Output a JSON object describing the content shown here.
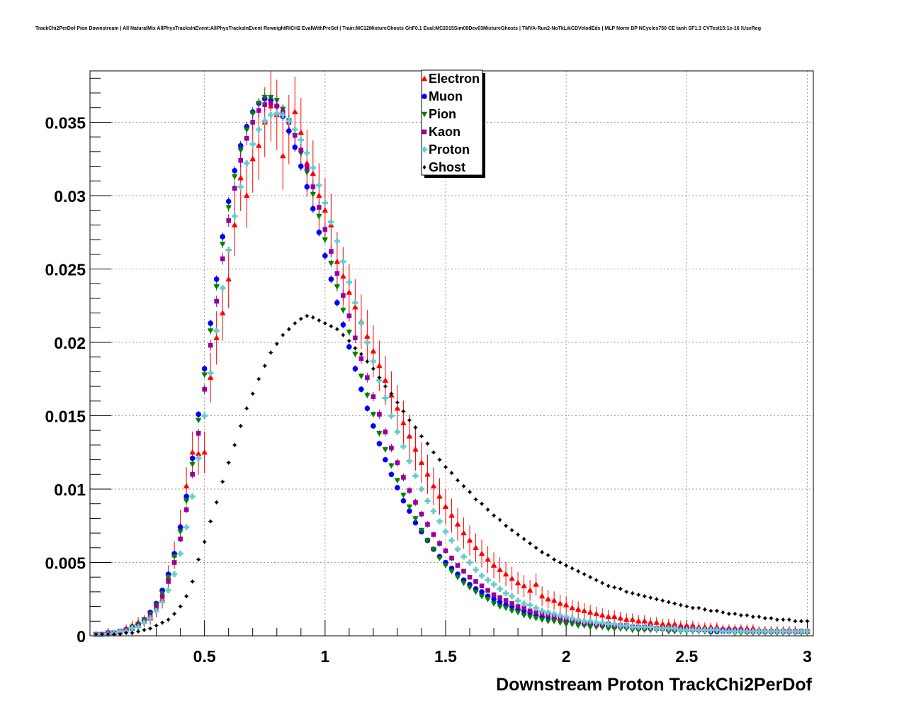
{
  "chart_data": {
    "type": "scatter",
    "title": "TrackChi2PerDof Pion Downstream | All NaturalMix AllPhysTracksInEvent:AllPhysTracksInEvent ReweightRICH2 EvalWithPreSel | Train:MC12MixtureGhosts GhF0.1 Eval:MC2015Sim09Dev03MixtureGhosts | TMVA-Run2-NoTkLikCDVelodEdx | MLP Norm BP NCycles750 CE tanh SF1.3 CVTest15:1e-16 !UseReg",
    "xlabel": "Downstream Proton TrackChi2PerDof",
    "ylabel": "",
    "xlim": [
      0.025,
      3.025
    ],
    "ylim": [
      0,
      0.0385
    ],
    "xticks": [
      0.5,
      1,
      1.5,
      2,
      2.5,
      3
    ],
    "xtick_labels": [
      "0.5",
      "1",
      "1.5",
      "2",
      "2.5",
      "3"
    ],
    "yticks": [
      0,
      0.005,
      0.01,
      0.015,
      0.02,
      0.025,
      0.03,
      0.035
    ],
    "ytick_labels": [
      "0",
      "0.005",
      "0.01",
      "0.015",
      "0.02",
      "0.025",
      "0.03",
      "0.035"
    ],
    "grid": true,
    "legend_position": "top-center",
    "x": [
      0.05,
      0.075,
      0.1,
      0.125,
      0.15,
      0.175,
      0.2,
      0.225,
      0.25,
      0.275,
      0.3,
      0.325,
      0.35,
      0.375,
      0.4,
      0.425,
      0.45,
      0.475,
      0.5,
      0.525,
      0.55,
      0.575,
      0.6,
      0.625,
      0.65,
      0.675,
      0.7,
      0.725,
      0.75,
      0.775,
      0.8,
      0.825,
      0.85,
      0.875,
      0.9,
      0.925,
      0.95,
      0.975,
      1.0,
      1.025,
      1.05,
      1.075,
      1.1,
      1.125,
      1.15,
      1.175,
      1.2,
      1.225,
      1.25,
      1.275,
      1.3,
      1.325,
      1.35,
      1.375,
      1.4,
      1.425,
      1.45,
      1.475,
      1.5,
      1.525,
      1.55,
      1.575,
      1.6,
      1.625,
      1.65,
      1.675,
      1.7,
      1.725,
      1.75,
      1.775,
      1.8,
      1.825,
      1.85,
      1.875,
      1.9,
      1.925,
      1.95,
      1.975,
      2.0,
      2.025,
      2.05,
      2.075,
      2.1,
      2.125,
      2.15,
      2.175,
      2.2,
      2.225,
      2.25,
      2.275,
      2.3,
      2.325,
      2.35,
      2.375,
      2.4,
      2.425,
      2.45,
      2.475,
      2.5,
      2.525,
      2.55,
      2.575,
      2.6,
      2.625,
      2.65,
      2.675,
      2.7,
      2.725,
      2.75,
      2.775,
      2.8,
      2.825,
      2.85,
      2.875,
      2.9,
      2.925,
      2.95,
      2.975,
      3.0
    ],
    "series": [
      {
        "name": "Electron",
        "color": "#ff0000",
        "marker": "triangle-up",
        "values": [
          0.0001,
          0.0001,
          0.0002,
          0.0002,
          0.0003,
          0.0005,
          0.0007,
          0.0009,
          0.001,
          0.0012,
          0.0018,
          0.0025,
          0.004,
          0.0055,
          0.0075,
          0.0102,
          0.0125,
          0.0124,
          0.0125,
          0.0176,
          0.0203,
          0.022,
          0.0243,
          0.028,
          0.0312,
          0.03,
          0.0325,
          0.0334,
          0.035,
          0.0361,
          0.0355,
          0.0327,
          0.0345,
          0.0357,
          0.0343,
          0.0322,
          0.0315,
          0.03,
          0.029,
          0.028,
          0.0255,
          0.0245,
          0.0234,
          0.0224,
          0.0214,
          0.0204,
          0.0194,
          0.0184,
          0.0174,
          0.0164,
          0.0155,
          0.0145,
          0.0136,
          0.0127,
          0.0118,
          0.011,
          0.0102,
          0.0095,
          0.0088,
          0.0082,
          0.0076,
          0.007,
          0.0065,
          0.006,
          0.0056,
          0.0052,
          0.0048,
          0.0045,
          0.0042,
          0.0039,
          0.0036,
          0.0034,
          0.0031,
          0.0035,
          0.0027,
          0.0025,
          0.0024,
          0.0022,
          0.0021,
          0.0019,
          0.0018,
          0.0017,
          0.0016,
          0.0015,
          0.0014,
          0.0013,
          0.0013,
          0.0012,
          0.0011,
          0.0011,
          0.001,
          0.001,
          0.0009,
          0.0009,
          0.0008,
          0.0008,
          0.0008,
          0.0007,
          0.0007,
          0.0007,
          0.0006,
          0.0006,
          0.0006,
          0.0006,
          0.0005,
          0.0005,
          0.0005,
          0.0005,
          0.0005,
          0.0005,
          0.0004,
          0.0004,
          0.0004,
          0.0004,
          0.0004,
          0.0004,
          0.0004,
          0.0003,
          0.0003
        ]
      },
      {
        "name": "Muon",
        "color": "#0000ff",
        "marker": "circle",
        "values": [
          0.0001,
          0.0001,
          0.0002,
          0.0002,
          0.0003,
          0.0004,
          0.0006,
          0.0008,
          0.0011,
          0.0016,
          0.0022,
          0.0031,
          0.0042,
          0.0056,
          0.0074,
          0.0095,
          0.0121,
          0.0151,
          0.0182,
          0.0213,
          0.0243,
          0.0272,
          0.0296,
          0.0317,
          0.0334,
          0.0347,
          0.0357,
          0.0363,
          0.0366,
          0.0365,
          0.0361,
          0.0354,
          0.0344,
          0.0333,
          0.032,
          0.0306,
          0.0291,
          0.0275,
          0.0259,
          0.0243,
          0.0227,
          0.0212,
          0.0197,
          0.0182,
          0.0168,
          0.0155,
          0.0143,
          0.0131,
          0.012,
          0.011,
          0.0101,
          0.0092,
          0.0085,
          0.0077,
          0.0071,
          0.0065,
          0.0059,
          0.0054,
          0.005,
          0.0046,
          0.0042,
          0.0038,
          0.0035,
          0.0032,
          0.003,
          0.0027,
          0.0025,
          0.0023,
          0.0021,
          0.002,
          0.0018,
          0.0017,
          0.0016,
          0.0014,
          0.0013,
          0.0013,
          0.0012,
          0.0011,
          0.001,
          0.001,
          0.0009,
          0.0008,
          0.0008,
          0.0008,
          0.0007,
          0.0007,
          0.0006,
          0.0006,
          0.0006,
          0.0006,
          0.0005,
          0.0005,
          0.0005,
          0.0005,
          0.0005,
          0.0004,
          0.0004,
          0.0004,
          0.0004,
          0.0004,
          0.0004,
          0.0004,
          0.0003,
          0.0003,
          0.0003,
          0.0003,
          0.0003,
          0.0003,
          0.0003,
          0.0003,
          0.0003,
          0.0003,
          0.0003,
          0.0003,
          0.0003,
          0.0003,
          0.0003,
          0.0003,
          0.0003
        ]
      },
      {
        "name": "Pion",
        "color": "#008000",
        "marker": "triangle-down",
        "values": [
          0.0001,
          0.0001,
          0.0002,
          0.0002,
          0.0003,
          0.0004,
          0.0006,
          0.0008,
          0.0011,
          0.0015,
          0.0021,
          0.0029,
          0.004,
          0.0054,
          0.0071,
          0.0092,
          0.0117,
          0.0147,
          0.0178,
          0.0208,
          0.0238,
          0.0267,
          0.0292,
          0.0313,
          0.0331,
          0.0345,
          0.0356,
          0.0363,
          0.0367,
          0.0367,
          0.0365,
          0.0359,
          0.0351,
          0.0341,
          0.0329,
          0.0316,
          0.0301,
          0.0286,
          0.027,
          0.0254,
          0.0238,
          0.0222,
          0.0207,
          0.0192,
          0.0177,
          0.0164,
          0.0151,
          0.0138,
          0.0127,
          0.0116,
          0.0106,
          0.0096,
          0.0088,
          0.008,
          0.0072,
          0.0065,
          0.0059,
          0.0053,
          0.0048,
          0.0044,
          0.004,
          0.0036,
          0.0033,
          0.003,
          0.0027,
          0.0025,
          0.0022,
          0.002,
          0.0019,
          0.0017,
          0.0016,
          0.0014,
          0.0013,
          0.0012,
          0.0011,
          0.001,
          0.001,
          0.0009,
          0.0008,
          0.0008,
          0.0007,
          0.0007,
          0.0006,
          0.0006,
          0.0006,
          0.0005,
          0.0005,
          0.0005,
          0.0005,
          0.0004,
          0.0004,
          0.0004,
          0.0004,
          0.0004,
          0.0004,
          0.0003,
          0.0003,
          0.0003,
          0.0003,
          0.0003,
          0.0003,
          0.0003,
          0.0003,
          0.0003,
          0.0003,
          0.0003,
          0.0002,
          0.0002,
          0.0002,
          0.0002,
          0.0002,
          0.0002,
          0.0002,
          0.0002,
          0.0002,
          0.0002,
          0.0002,
          0.0002,
          0.0002
        ]
      },
      {
        "name": "Kaon",
        "color": "#990099",
        "marker": "square",
        "values": [
          0.0001,
          0.0001,
          0.0002,
          0.0002,
          0.0003,
          0.0004,
          0.0005,
          0.0007,
          0.001,
          0.0014,
          0.002,
          0.0027,
          0.0037,
          0.005,
          0.0066,
          0.0086,
          0.011,
          0.0138,
          0.0168,
          0.0198,
          0.0228,
          0.0257,
          0.0283,
          0.0305,
          0.0324,
          0.0339,
          0.035,
          0.0358,
          0.0362,
          0.0363,
          0.0361,
          0.0357,
          0.035,
          0.0341,
          0.0331,
          0.0319,
          0.0306,
          0.0292,
          0.0277,
          0.0262,
          0.0247,
          0.0232,
          0.0218,
          0.0203,
          0.0189,
          0.0176,
          0.0163,
          0.0151,
          0.0139,
          0.0128,
          0.0118,
          0.0108,
          0.0099,
          0.0091,
          0.0083,
          0.0076,
          0.0069,
          0.0063,
          0.0058,
          0.0053,
          0.0048,
          0.0044,
          0.004,
          0.0037,
          0.0034,
          0.0031,
          0.0028,
          0.0026,
          0.0024,
          0.0022,
          0.002,
          0.0019,
          0.0017,
          0.0016,
          0.0015,
          0.0014,
          0.0013,
          0.0012,
          0.0011,
          0.0011,
          0.001,
          0.0009,
          0.0009,
          0.0008,
          0.0008,
          0.0008,
          0.0007,
          0.0007,
          0.0007,
          0.0006,
          0.0006,
          0.0006,
          0.0006,
          0.0005,
          0.0005,
          0.0005,
          0.0005,
          0.0005,
          0.0005,
          0.0004,
          0.0004,
          0.0004,
          0.0004,
          0.0004,
          0.0004,
          0.0004,
          0.0004,
          0.0004,
          0.0003,
          0.0003,
          0.0003,
          0.0003,
          0.0003,
          0.0003,
          0.0003,
          0.0003,
          0.0003,
          0.0003,
          0.0003
        ]
      },
      {
        "name": "Proton",
        "color": "#66cccc",
        "marker": "cross",
        "values": [
          0.0001,
          0.0001,
          0.0001,
          0.0002,
          0.0003,
          0.0003,
          0.0005,
          0.0006,
          0.0009,
          0.0012,
          0.0017,
          0.0023,
          0.0031,
          0.0042,
          0.0056,
          0.0074,
          0.0095,
          0.0121,
          0.015,
          0.0179,
          0.0208,
          0.0237,
          0.0263,
          0.0286,
          0.0306,
          0.0322,
          0.0335,
          0.0345,
          0.0351,
          0.0355,
          0.0356,
          0.0355,
          0.0351,
          0.0345,
          0.0338,
          0.0329,
          0.0319,
          0.0307,
          0.0295,
          0.0282,
          0.0269,
          0.0255,
          0.0241,
          0.0227,
          0.0213,
          0.02,
          0.0187,
          0.0174,
          0.0162,
          0.015,
          0.0139,
          0.0129,
          0.0119,
          0.0109,
          0.01,
          0.0092,
          0.0085,
          0.0078,
          0.0071,
          0.0065,
          0.0059,
          0.0054,
          0.005,
          0.0045,
          0.0041,
          0.0038,
          0.0035,
          0.0032,
          0.0029,
          0.0027,
          0.0024,
          0.0022,
          0.0021,
          0.0019,
          0.0017,
          0.0016,
          0.0015,
          0.0014,
          0.0013,
          0.0012,
          0.0011,
          0.001,
          0.001,
          0.0009,
          0.0009,
          0.0008,
          0.0008,
          0.0007,
          0.0007,
          0.0006,
          0.0006,
          0.0006,
          0.0006,
          0.0005,
          0.0005,
          0.0005,
          0.0005,
          0.0004,
          0.0004,
          0.0004,
          0.0004,
          0.0004,
          0.0004,
          0.0004,
          0.0003,
          0.0003,
          0.0003,
          0.0003,
          0.0003,
          0.0003,
          0.0003,
          0.0003,
          0.0003,
          0.0003,
          0.0003,
          0.0003,
          0.0003,
          0.0003,
          0.0003
        ]
      },
      {
        "name": "Ghost",
        "color": "#000000",
        "marker": "diamond",
        "values": [
          0.0001,
          0.0001,
          0.0001,
          0.0001,
          0.0001,
          0.0002,
          0.0002,
          0.0003,
          0.0004,
          0.0005,
          0.0007,
          0.0009,
          0.0011,
          0.0015,
          0.002,
          0.0027,
          0.0037,
          0.0052,
          0.0064,
          0.0078,
          0.0091,
          0.0105,
          0.0118,
          0.013,
          0.0143,
          0.0155,
          0.0165,
          0.0175,
          0.0184,
          0.0193,
          0.0199,
          0.0205,
          0.0209,
          0.0213,
          0.0216,
          0.0218,
          0.0217,
          0.0215,
          0.0213,
          0.0211,
          0.0209,
          0.0205,
          0.0201,
          0.0196,
          0.0192,
          0.0187,
          0.0182,
          0.0176,
          0.017,
          0.0165,
          0.0159,
          0.0153,
          0.0147,
          0.0142,
          0.0136,
          0.0131,
          0.0125,
          0.012,
          0.0115,
          0.0111,
          0.0106,
          0.0102,
          0.0098,
          0.0093,
          0.009,
          0.0086,
          0.0082,
          0.0079,
          0.0075,
          0.0072,
          0.0069,
          0.0066,
          0.0063,
          0.006,
          0.0057,
          0.0055,
          0.0052,
          0.005,
          0.0048,
          0.0046,
          0.0044,
          0.0042,
          0.004,
          0.0038,
          0.0036,
          0.0034,
          0.0033,
          0.0032,
          0.003,
          0.0029,
          0.0028,
          0.0027,
          0.0026,
          0.0025,
          0.0024,
          0.0023,
          0.0022,
          0.0021,
          0.002,
          0.0019,
          0.0019,
          0.0018,
          0.0017,
          0.0017,
          0.0016,
          0.0015,
          0.0015,
          0.0014,
          0.0014,
          0.0013,
          0.0013,
          0.0012,
          0.0012,
          0.0011,
          0.0011,
          0.0011,
          0.001,
          0.001,
          0.001
        ]
      }
    ]
  }
}
